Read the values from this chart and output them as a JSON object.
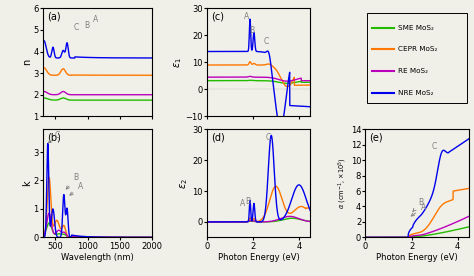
{
  "colors": {
    "green": "#22BB00",
    "orange": "#FF7700",
    "purple": "#BB00BB",
    "blue": "#0000EE"
  },
  "legend_labels": [
    "SME MoS₂",
    "CEPR MoS₂",
    "RE MoS₂",
    "NRE MoS₂"
  ],
  "bg_color": "#F0F0E8",
  "panel_labels": [
    "(a)",
    "(b)",
    "(c)",
    "(d)",
    "(e)"
  ]
}
